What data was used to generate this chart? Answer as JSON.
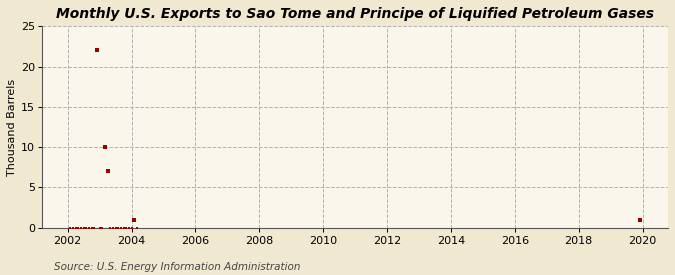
{
  "title": "Monthly U.S. Exports to Sao Tome and Principe of Liquified Petroleum Gases",
  "ylabel": "Thousand Barrels",
  "source": "Source: U.S. Energy Information Administration",
  "background_color": "#f0e8d0",
  "plot_background_color": "#faf6ec",
  "xlim": [
    2001.2,
    2020.8
  ],
  "ylim": [
    0,
    25
  ],
  "xticks": [
    2002,
    2004,
    2006,
    2008,
    2010,
    2012,
    2014,
    2016,
    2018,
    2020
  ],
  "yticks": [
    0,
    5,
    10,
    15,
    20,
    25
  ],
  "data_x": [
    2002.08,
    2002.17,
    2002.25,
    2002.33,
    2002.42,
    2002.5,
    2002.58,
    2002.67,
    2002.75,
    2002.83,
    2002.92,
    2003.0,
    2003.08,
    2003.17,
    2003.25,
    2003.33,
    2003.42,
    2003.5,
    2003.58,
    2003.67,
    2003.75,
    2003.83,
    2003.92,
    2004.0,
    2004.08,
    2004.17,
    2019.92
  ],
  "data_y": [
    0,
    0,
    0,
    0,
    0,
    0,
    0,
    0,
    0,
    0,
    22,
    0,
    0,
    10,
    7,
    0,
    0,
    0,
    0,
    0,
    0,
    0,
    0,
    0,
    1,
    0,
    1
  ],
  "marker_color": "#990000",
  "marker_size_nonzero": 3.5,
  "marker_size_zero": 2.0,
  "title_fontsize": 10,
  "axis_label_fontsize": 8,
  "tick_fontsize": 8,
  "source_fontsize": 7.5
}
